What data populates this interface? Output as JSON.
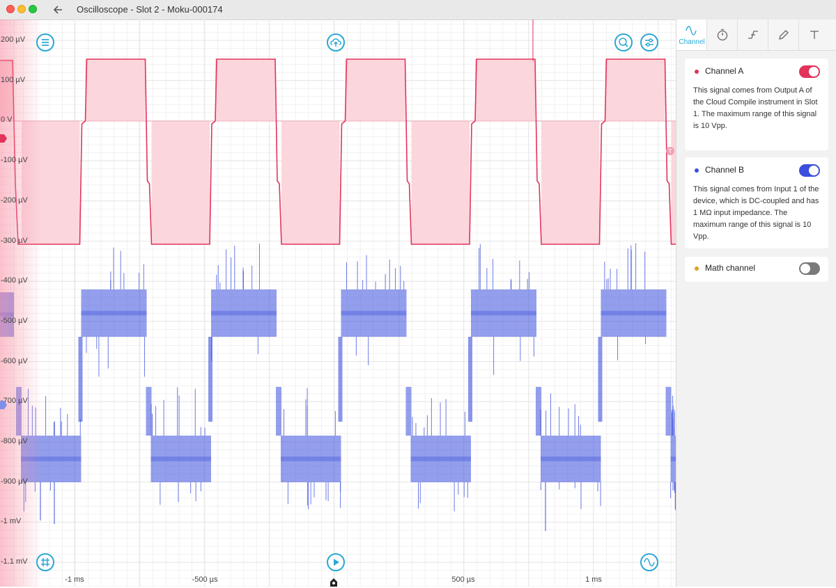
{
  "window": {
    "title": "Oscilloscope - Slot 2 - Moku-000174"
  },
  "plot": {
    "y_labels": [
      "200 µV",
      "100 µV",
      "0 V",
      "-100 µV",
      "-200 µV",
      "-300 µV",
      "-400 µV",
      "-500 µV",
      "-600 µV",
      "-700 µV",
      "-800 µV",
      "-900 µV",
      "-1 mV",
      "-1.1 mV"
    ],
    "x_labels": [
      "-1 ms",
      "-500 µs",
      "500 µs",
      "1 ms"
    ],
    "channel_a_color": "#e2335a",
    "channel_a_fill": "#fbd6dd",
    "channel_b_color": "#3b4fdc",
    "grid_color": "#e6e6e6"
  },
  "panel": {
    "tabs": [
      {
        "name": "channel",
        "label": "Channel",
        "icon": "sine-wave-icon"
      },
      {
        "name": "timebase",
        "label": "",
        "icon": "stopwatch-icon"
      },
      {
        "name": "trigger",
        "label": "",
        "icon": "trigger-edge-icon"
      },
      {
        "name": "measure",
        "label": "",
        "icon": "pencil-icon"
      },
      {
        "name": "cursors",
        "label": "",
        "icon": "cursor-icon"
      }
    ],
    "channels": [
      {
        "title": "Channel A",
        "color": "#e2335a",
        "enabled": true,
        "description": "This signal comes from Output A of the Cloud Compile instrument in Slot 1. The maximum range of this signal is 10 Vpp."
      },
      {
        "title": "Channel B",
        "color": "#3b4fdc",
        "enabled": true,
        "description": "This signal comes from Input 1 of the device, which is DC-coupled and has 1 MΩ input impedance. The maximum range of this signal is 10 Vpp."
      },
      {
        "title": "Math channel",
        "color": "#e0a020",
        "enabled": false,
        "description": ""
      }
    ]
  }
}
